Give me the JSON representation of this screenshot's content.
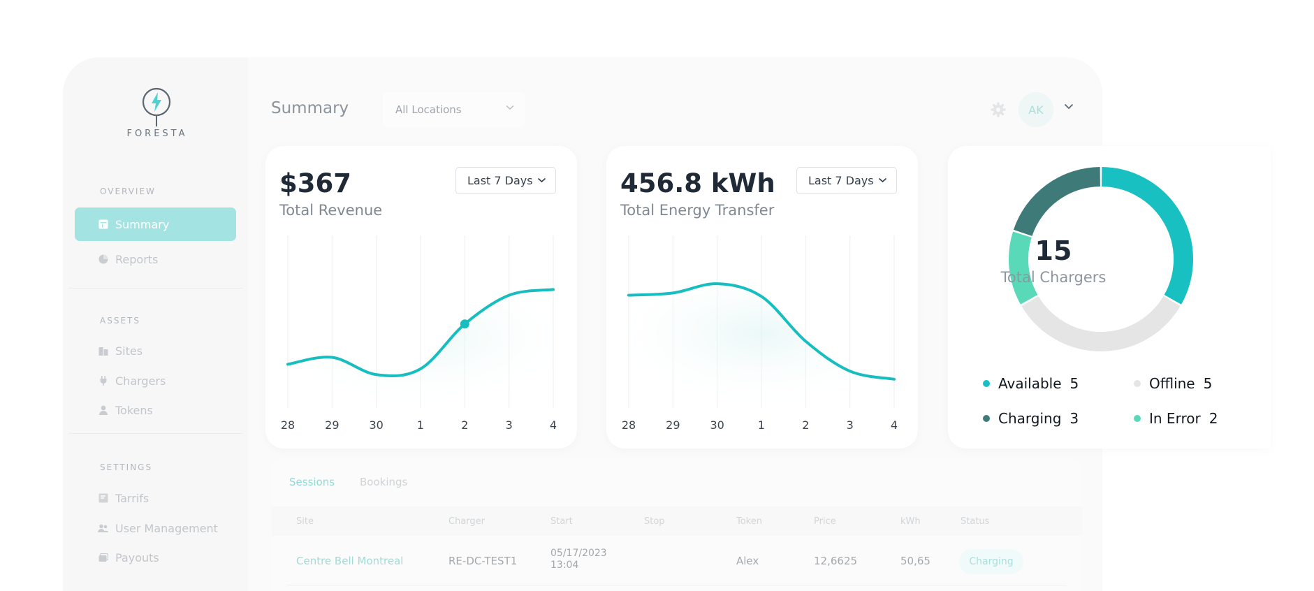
{
  "brand": {
    "name": "FORESTA"
  },
  "sidebar": {
    "sections": [
      {
        "label": "OVERVIEW",
        "items": [
          {
            "label": "Summary",
            "icon": "layout-icon",
            "active": true
          },
          {
            "label": "Reports",
            "icon": "pie-chart-icon",
            "active": false
          }
        ]
      },
      {
        "label": "ASSETS",
        "items": [
          {
            "label": "Sites",
            "icon": "buildings-icon"
          },
          {
            "label": "Chargers",
            "icon": "plug-icon"
          },
          {
            "label": "Tokens",
            "icon": "user-icon"
          }
        ]
      },
      {
        "label": "SETTINGS",
        "items": [
          {
            "label": "Tarrifs",
            "icon": "tariff-icon"
          },
          {
            "label": "User Management",
            "icon": "users-icon"
          },
          {
            "label": "Payouts",
            "icon": "payouts-icon"
          }
        ]
      }
    ]
  },
  "header": {
    "title": "Summary",
    "location_select": "All Locations",
    "user_initials": "AK"
  },
  "revenue_card": {
    "value": "$367",
    "label": "Total Revenue",
    "range": "Last 7 Days"
  },
  "energy_card": {
    "value": "456.8 kWh",
    "label": "Total Energy Transfer",
    "range": "Last 7 Days"
  },
  "chargers_card": {
    "total": "15",
    "label": "Total Chargers",
    "legend": [
      {
        "name": "Available",
        "count": "5",
        "color": "#18c0c1"
      },
      {
        "name": "Offline",
        "count": "5",
        "color": "#e5e5e5"
      },
      {
        "name": "Charging",
        "count": "3",
        "color": "#3e7b78"
      },
      {
        "name": "In Error",
        "count": "2",
        "color": "#5ad9b8"
      }
    ]
  },
  "table": {
    "tabs": [
      "Sessions",
      "Bookings"
    ],
    "active_tab": "Sessions",
    "columns": [
      "Site",
      "Charger",
      "Start",
      "Stop",
      "Token",
      "Price",
      "kWh",
      "Status"
    ],
    "rows": [
      {
        "site": "Centre Bell Montreal",
        "charger": "RE-DC-TEST1",
        "start_date": "05/17/2023",
        "start_time": "13:04",
        "stop": "",
        "token": "Alex",
        "price": "12,6625",
        "kwh": "50,65",
        "status": "Charging"
      }
    ]
  },
  "chart_data": [
    {
      "type": "line",
      "categories": [
        "28",
        "29",
        "30",
        "1",
        "2",
        "3",
        "4"
      ],
      "series": [
        {
          "values": [
            0.38,
            0.44,
            0.29,
            0.34,
            0.73,
            0.98,
            1.03
          ]
        }
      ],
      "highlighted_point_index": 4,
      "ylim": [
        0,
        1.5
      ],
      "grid": "vertical",
      "color": "#18bebf"
    },
    {
      "type": "line",
      "categories": [
        "28",
        "29",
        "30",
        "1",
        "2",
        "3",
        "4"
      ],
      "series": [
        {
          "values": [
            0.98,
            1.0,
            1.08,
            0.97,
            0.58,
            0.32,
            0.25
          ]
        }
      ],
      "ylim": [
        0,
        1.5
      ],
      "grid": "vertical",
      "color": "#18bebf"
    },
    {
      "type": "pie",
      "donut": true,
      "categories": [
        "Available",
        "Offline",
        "In Error",
        "Charging"
      ],
      "values": [
        5,
        5,
        2,
        3
      ],
      "colors": [
        "#18c0c1",
        "#e5e5e5",
        "#5ad9b8",
        "#3e7b78"
      ]
    }
  ]
}
